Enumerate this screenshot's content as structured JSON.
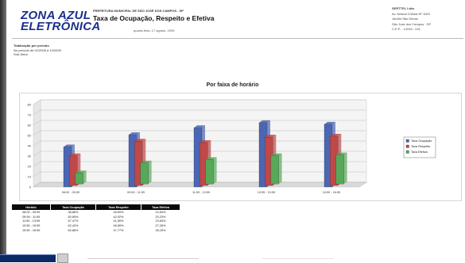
{
  "header": {
    "logo_line1": "ZONA AZUL",
    "logo_line2": "ELETRÔNICA",
    "agency": "PREFEITURA MUNICIPAL DE SÃO JOSÉ DOS CAMPOS - SP",
    "report_title": "Taxa de Ocupação, Respeito e Efetiva",
    "report_date": "quarta-feira, 17 agosto, 2005"
  },
  "address": {
    "company": "SERTTEL Ltda.",
    "line1": "Av. Nelson D'Ávila Nº 1000",
    "line2": "Jardim São Dimas",
    "line3": "São José dos Campos - SP",
    "line4": "C.E.P. - 12245 - 031"
  },
  "meta": {
    "title": "Totalização por período",
    "period": "No período de 01/2005 a 12/2005",
    "scope": "Sub-Setor"
  },
  "chart_data": {
    "type": "bar",
    "title": "Por faixa de horário",
    "categories": [
      "08:00 - 09:59",
      "09:59 - 11:59",
      "11:59 - 13:59",
      "13:59 - 15:59",
      "15:59 - 16:59"
    ],
    "series": [
      {
        "name": "Taxa Ocupação",
        "color": "#4a66b4",
        "values": [
          38.86,
          50.69,
          57.47,
          62.42,
          60.86
        ]
      },
      {
        "name": "Taxa Respeito",
        "color": "#c04848",
        "values": [
          28.69,
          42.92,
          41.59,
          46.89,
          47.77
        ]
      },
      {
        "name": "Taxa Efetiva",
        "color": "#58a85a",
        "values": [
          10.64,
          20.23,
          23.63,
          27.26,
          28.15
        ]
      }
    ],
    "ylim": [
      0,
      80
    ],
    "yticks": [
      "0",
      "10",
      "20",
      "30",
      "40",
      "50",
      "60",
      "70",
      "80"
    ],
    "xlabel": "",
    "ylabel": "",
    "legend_position": "right",
    "grid": true
  },
  "table": {
    "headers": [
      "Horário",
      "Taxa Ocupação",
      "Taxa Respeito",
      "Taxa Efetiva"
    ],
    "rows": [
      [
        "08:00 - 09:59",
        "38,86%",
        "28,69%",
        "10,64%"
      ],
      [
        "09:59 - 11:59",
        "50,69%",
        "42,92%",
        "20,23%"
      ],
      [
        "11:59 - 13:59",
        "57,47%",
        "41,59%",
        "23,63%"
      ],
      [
        "13:59 - 15:59",
        "62,42%",
        "46,89%",
        "27,26%"
      ],
      [
        "15:59 - 16:59",
        "60,86%",
        "47,77%",
        "28,15%"
      ]
    ]
  }
}
